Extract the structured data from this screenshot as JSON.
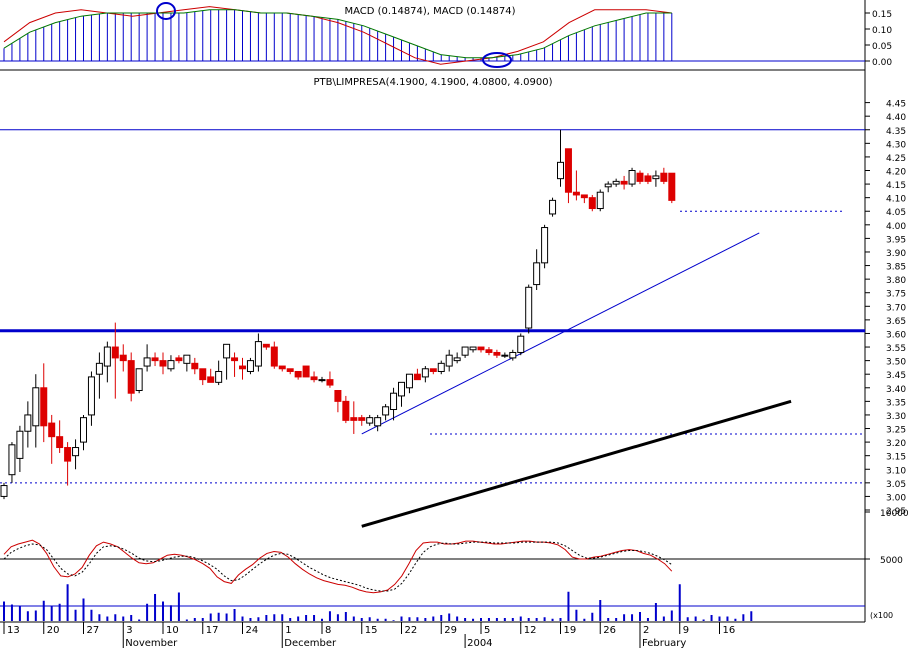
{
  "chart_data": [
    {
      "type": "line",
      "title": "MACD (0.14874), MACD (0.14874)",
      "ylim": [
        0,
        0.2
      ],
      "yticks": [
        0.0,
        0.05,
        0.1,
        0.15
      ],
      "ytick_labels": [
        "0.00",
        "0.05",
        "0.10",
        "0.15"
      ],
      "series": [
        {
          "values": [
            0.06,
            0.12,
            0.15,
            0.16,
            0.15,
            0.14,
            0.15,
            0.16,
            0.17,
            0.16,
            0.15,
            0.15,
            0.14,
            0.12,
            0.09,
            0.05,
            0.01,
            -0.01,
            0.0,
            0.01,
            0.03,
            0.06,
            0.12,
            0.16,
            0.16,
            0.16,
            0.15
          ]
        },
        {
          "values": [
            0.04,
            0.09,
            0.12,
            0.14,
            0.15,
            0.15,
            0.15,
            0.15,
            0.16,
            0.16,
            0.15,
            0.15,
            0.14,
            0.13,
            0.11,
            0.08,
            0.05,
            0.02,
            0.01,
            0.01,
            0.02,
            0.04,
            0.08,
            0.11,
            0.13,
            0.15,
            0.15
          ]
        }
      ],
      "annotations": [
        "circle",
        "ellipse"
      ]
    },
    {
      "type": "candlestick",
      "title": "PTB\\LIMPRESA(4.1900, 4.1900, 4.0800, 4.0900)",
      "ylim": [
        2.9,
        4.47
      ],
      "ytick_labels": [
        "2.95",
        "3.00",
        "3.05",
        "3.10",
        "3.15",
        "3.20",
        "3.25",
        "3.30",
        "3.35",
        "3.40",
        "3.45",
        "3.50",
        "3.55",
        "3.60",
        "3.65",
        "3.70",
        "3.75",
        "3.80",
        "3.85",
        "3.90",
        "3.95",
        "4.00",
        "4.05",
        "4.10",
        "4.15",
        "4.20",
        "4.25",
        "4.30",
        "4.35",
        "4.40",
        "4.45"
      ],
      "x_tick_labels": [
        "13",
        "20",
        "27",
        "3",
        "10",
        "17",
        "24",
        "1",
        "8",
        "15",
        "22",
        "29",
        "5",
        "12",
        "19",
        "26",
        "2",
        "9",
        "16"
      ],
      "x_tick_index": [
        0,
        5,
        10,
        15,
        20,
        25,
        30,
        35,
        40,
        45,
        50,
        55,
        60,
        65,
        70,
        75,
        80,
        85,
        90
      ],
      "month_labels": [
        {
          "label": "November",
          "index": 15
        },
        {
          "label": "December",
          "index": 35
        },
        {
          "label": "2004",
          "index": 58
        },
        {
          "label": "February",
          "index": 80
        }
      ],
      "candles": [
        {
          "o": 3.0,
          "h": 3.05,
          "l": 2.99,
          "c": 3.04
        },
        {
          "o": 3.08,
          "h": 3.2,
          "l": 3.05,
          "c": 3.19
        },
        {
          "o": 3.14,
          "h": 3.26,
          "l": 3.09,
          "c": 3.24
        },
        {
          "o": 3.24,
          "h": 3.35,
          "l": 3.18,
          "c": 3.3
        },
        {
          "o": 3.26,
          "h": 3.45,
          "l": 3.18,
          "c": 3.4
        },
        {
          "o": 3.4,
          "h": 3.49,
          "l": 3.2,
          "c": 3.26
        },
        {
          "o": 3.27,
          "h": 3.3,
          "l": 3.12,
          "c": 3.22
        },
        {
          "o": 3.22,
          "h": 3.28,
          "l": 3.16,
          "c": 3.18
        },
        {
          "o": 3.18,
          "h": 3.2,
          "l": 3.04,
          "c": 3.13
        },
        {
          "o": 3.15,
          "h": 3.21,
          "l": 3.1,
          "c": 3.18
        },
        {
          "o": 3.2,
          "h": 3.3,
          "l": 3.17,
          "c": 3.29
        },
        {
          "o": 3.3,
          "h": 3.46,
          "l": 3.26,
          "c": 3.44
        },
        {
          "o": 3.45,
          "h": 3.53,
          "l": 3.36,
          "c": 3.49
        },
        {
          "o": 3.48,
          "h": 3.57,
          "l": 3.42,
          "c": 3.55
        },
        {
          "o": 3.55,
          "h": 3.64,
          "l": 3.36,
          "c": 3.51
        },
        {
          "o": 3.52,
          "h": 3.56,
          "l": 3.46,
          "c": 3.5
        },
        {
          "o": 3.5,
          "h": 3.53,
          "l": 3.35,
          "c": 3.38
        },
        {
          "o": 3.39,
          "h": 3.47,
          "l": 3.38,
          "c": 3.47
        },
        {
          "o": 3.48,
          "h": 3.56,
          "l": 3.46,
          "c": 3.51
        },
        {
          "o": 3.51,
          "h": 3.53,
          "l": 3.48,
          "c": 3.5
        },
        {
          "o": 3.5,
          "h": 3.53,
          "l": 3.45,
          "c": 3.48
        },
        {
          "o": 3.47,
          "h": 3.52,
          "l": 3.46,
          "c": 3.5
        },
        {
          "o": 3.51,
          "h": 3.52,
          "l": 3.49,
          "c": 3.5
        },
        {
          "o": 3.49,
          "h": 3.52,
          "l": 3.46,
          "c": 3.52
        },
        {
          "o": 3.49,
          "h": 3.51,
          "l": 3.45,
          "c": 3.47
        },
        {
          "o": 3.47,
          "h": 3.47,
          "l": 3.41,
          "c": 3.43
        },
        {
          "o": 3.44,
          "h": 3.47,
          "l": 3.42,
          "c": 3.42
        },
        {
          "o": 3.42,
          "h": 3.5,
          "l": 3.41,
          "c": 3.46
        },
        {
          "o": 3.51,
          "h": 3.56,
          "l": 3.43,
          "c": 3.56
        },
        {
          "o": 3.51,
          "h": 3.53,
          "l": 3.44,
          "c": 3.5
        },
        {
          "o": 3.48,
          "h": 3.51,
          "l": 3.43,
          "c": 3.47
        },
        {
          "o": 3.46,
          "h": 3.51,
          "l": 3.45,
          "c": 3.5
        },
        {
          "o": 3.48,
          "h": 3.6,
          "l": 3.46,
          "c": 3.57
        },
        {
          "o": 3.56,
          "h": 3.56,
          "l": 3.54,
          "c": 3.55
        },
        {
          "o": 3.55,
          "h": 3.57,
          "l": 3.47,
          "c": 3.48
        },
        {
          "o": 3.48,
          "h": 3.48,
          "l": 3.46,
          "c": 3.47
        },
        {
          "o": 3.47,
          "h": 3.47,
          "l": 3.45,
          "c": 3.46
        },
        {
          "o": 3.46,
          "h": 3.46,
          "l": 3.43,
          "c": 3.44
        },
        {
          "o": 3.48,
          "h": 3.48,
          "l": 3.44,
          "c": 3.44
        },
        {
          "o": 3.44,
          "h": 3.46,
          "l": 3.42,
          "c": 3.43
        },
        {
          "o": 3.43,
          "h": 3.44,
          "l": 3.42,
          "c": 3.43
        },
        {
          "o": 3.43,
          "h": 3.46,
          "l": 3.4,
          "c": 3.41
        },
        {
          "o": 3.39,
          "h": 3.39,
          "l": 3.31,
          "c": 3.35
        },
        {
          "o": 3.35,
          "h": 3.37,
          "l": 3.27,
          "c": 3.28
        },
        {
          "o": 3.29,
          "h": 3.35,
          "l": 3.23,
          "c": 3.28
        },
        {
          "o": 3.29,
          "h": 3.3,
          "l": 3.26,
          "c": 3.28
        },
        {
          "o": 3.27,
          "h": 3.3,
          "l": 3.26,
          "c": 3.29
        },
        {
          "o": 3.26,
          "h": 3.3,
          "l": 3.24,
          "c": 3.29
        },
        {
          "o": 3.3,
          "h": 3.34,
          "l": 3.28,
          "c": 3.33
        },
        {
          "o": 3.32,
          "h": 3.4,
          "l": 3.28,
          "c": 3.38
        },
        {
          "o": 3.37,
          "h": 3.42,
          "l": 3.33,
          "c": 3.42
        },
        {
          "o": 3.4,
          "h": 3.45,
          "l": 3.38,
          "c": 3.45
        },
        {
          "o": 3.45,
          "h": 3.47,
          "l": 3.43,
          "c": 3.43
        },
        {
          "o": 3.44,
          "h": 3.48,
          "l": 3.42,
          "c": 3.47
        },
        {
          "o": 3.47,
          "h": 3.47,
          "l": 3.45,
          "c": 3.46
        },
        {
          "o": 3.46,
          "h": 3.5,
          "l": 3.45,
          "c": 3.49
        },
        {
          "o": 3.48,
          "h": 3.54,
          "l": 3.46,
          "c": 3.52
        },
        {
          "o": 3.5,
          "h": 3.53,
          "l": 3.49,
          "c": 3.51
        },
        {
          "o": 3.52,
          "h": 3.55,
          "l": 3.51,
          "c": 3.55
        },
        {
          "o": 3.54,
          "h": 3.55,
          "l": 3.53,
          "c": 3.55
        },
        {
          "o": 3.55,
          "h": 3.55,
          "l": 3.53,
          "c": 3.54
        },
        {
          "o": 3.54,
          "h": 3.55,
          "l": 3.52,
          "c": 3.53
        },
        {
          "o": 3.53,
          "h": 3.54,
          "l": 3.51,
          "c": 3.52
        },
        {
          "o": 3.52,
          "h": 3.53,
          "l": 3.51,
          "c": 3.52
        },
        {
          "o": 3.51,
          "h": 3.54,
          "l": 3.5,
          "c": 3.53
        },
        {
          "o": 3.53,
          "h": 3.6,
          "l": 3.52,
          "c": 3.59
        },
        {
          "o": 3.62,
          "h": 3.78,
          "l": 3.6,
          "c": 3.77
        },
        {
          "o": 3.78,
          "h": 3.91,
          "l": 3.76,
          "c": 3.86
        },
        {
          "o": 3.86,
          "h": 4.0,
          "l": 3.84,
          "c": 3.99
        },
        {
          "o": 4.04,
          "h": 4.1,
          "l": 4.03,
          "c": 4.09
        },
        {
          "o": 4.17,
          "h": 4.35,
          "l": 4.14,
          "c": 4.23
        },
        {
          "o": 4.28,
          "h": 4.28,
          "l": 4.08,
          "c": 4.12
        },
        {
          "o": 4.12,
          "h": 4.2,
          "l": 4.09,
          "c": 4.11
        },
        {
          "o": 4.11,
          "h": 4.11,
          "l": 4.08,
          "c": 4.1
        },
        {
          "o": 4.1,
          "h": 4.11,
          "l": 4.05,
          "c": 4.06
        },
        {
          "o": 4.06,
          "h": 4.13,
          "l": 4.05,
          "c": 4.12
        },
        {
          "o": 4.14,
          "h": 4.16,
          "l": 4.12,
          "c": 4.15
        },
        {
          "o": 4.15,
          "h": 4.17,
          "l": 4.14,
          "c": 4.16
        },
        {
          "o": 4.16,
          "h": 4.18,
          "l": 4.13,
          "c": 4.15
        },
        {
          "o": 4.15,
          "h": 4.21,
          "l": 4.14,
          "c": 4.2
        },
        {
          "o": 4.19,
          "h": 4.2,
          "l": 4.15,
          "c": 4.16
        },
        {
          "o": 4.18,
          "h": 4.19,
          "l": 4.15,
          "c": 4.16
        },
        {
          "o": 4.17,
          "h": 4.2,
          "l": 4.14,
          "c": 4.18
        },
        {
          "o": 4.19,
          "h": 4.21,
          "l": 4.15,
          "c": 4.16
        },
        {
          "o": 4.19,
          "h": 4.19,
          "l": 4.08,
          "c": 4.09
        }
      ],
      "reference_lines": [
        {
          "type": "horizontal",
          "value": 4.35,
          "color": "#0000cc"
        },
        {
          "type": "horizontal",
          "value": 3.61,
          "color": "#0000cc",
          "thick": true
        },
        {
          "type": "horizontal-dotted",
          "value": 3.05,
          "color": "#0000cc"
        },
        {
          "type": "horizontal-dotted",
          "value": 3.23,
          "color": "#0000cc"
        },
        {
          "type": "horizontal-dotted",
          "value": 4.05,
          "color": "#0000cc"
        }
      ],
      "trend_lines": [
        {
          "from": {
            "index": 45,
            "value": 3.23
          },
          "to": {
            "index": 95,
            "value": 3.97
          },
          "color": "#0000cc"
        },
        {
          "from": {
            "index": 45,
            "value": 2.89
          },
          "to": {
            "index": 99,
            "value": 3.35
          },
          "color": "#000000",
          "thick": true
        }
      ]
    },
    {
      "type": "line",
      "title": "",
      "ytick_labels": [
        "10000",
        "5000"
      ],
      "axis_unit_label": "(x100",
      "series": [
        {
          "name": "",
          "color": "#cc0000",
          "values": [
            5500,
            6300,
            6600,
            6800,
            7000,
            6600,
            5600,
            4200,
            3200,
            3100,
            3400,
            4100,
            5400,
            6400,
            6800,
            6600,
            6300,
            5700,
            5100,
            4600,
            4500,
            4600,
            5000,
            5400,
            5500,
            5400,
            5200,
            4900,
            4500,
            4000,
            3100,
            2600,
            2400,
            3300,
            3900,
            4400,
            5100,
            5600,
            5800,
            5700,
            5200,
            4500,
            3900,
            3400,
            3000,
            2700,
            2500,
            2300,
            2200,
            2000,
            1700,
            1500,
            1400,
            1500,
            1700,
            2300,
            3200,
            4500,
            5900,
            6700,
            6800,
            6800,
            6600,
            6600,
            6700,
            6900,
            6900,
            6800,
            6700,
            6600,
            6600,
            6700,
            6800,
            6900,
            6900,
            6800,
            6800,
            6700,
            6500,
            6000,
            5200,
            5000,
            5000,
            5200,
            5300,
            5500,
            5700,
            5900,
            6000,
            5900,
            5600,
            5400,
            5000,
            4500,
            3700
          ]
        },
        {
          "name": "",
          "color": "#000000",
          "values": [
            5000,
            5700,
            6100,
            6400,
            6600,
            6500,
            6000,
            5000,
            4000,
            3400,
            3200,
            3600,
            4500,
            5600,
            6300,
            6400,
            6300,
            6000,
            5600,
            5100,
            4800,
            4700,
            4800,
            5000,
            5200,
            5300,
            5300,
            5100,
            4800,
            4400,
            3900,
            3200,
            2700,
            2800,
            3300,
            3900,
            4500,
            5000,
            5400,
            5600,
            5500,
            5100,
            4600,
            4100,
            3700,
            3300,
            3000,
            2800,
            2600,
            2400,
            2200,
            1900,
            1700,
            1600,
            1600,
            1800,
            2400,
            3400,
            4600,
            5700,
            6300,
            6600,
            6700,
            6600,
            6600,
            6700,
            6800,
            6800,
            6800,
            6700,
            6700,
            6700,
            6700,
            6800,
            6800,
            6800,
            6800,
            6800,
            6700,
            6400,
            5900,
            5400,
            5100,
            5100,
            5200,
            5400,
            5600,
            5800,
            5900,
            5900,
            5800,
            5600,
            5300,
            4900,
            4400
          ]
        }
      ],
      "volume_bars": [
        2600,
        2200,
        2000,
        1300,
        1400,
        2700,
        2000,
        2300,
        4900,
        1500,
        3000,
        1500,
        900,
        600,
        900,
        600,
        800,
        200,
        2300,
        3600,
        2600,
        2100,
        3800,
        200,
        400,
        400,
        1000,
        1100,
        1000,
        1600,
        600,
        400,
        500,
        800,
        900,
        900,
        400,
        600,
        800,
        800,
        300,
        1300,
        900,
        1200,
        600,
        400,
        500,
        300,
        300,
        100,
        600,
        500,
        500,
        400,
        600,
        800,
        1000,
        600,
        400,
        300,
        400,
        400,
        400,
        400,
        400,
        600,
        400,
        400,
        500,
        300,
        400,
        3900,
        1500,
        300,
        1100,
        2800,
        400,
        400,
        900,
        900,
        1200,
        400,
        2400,
        600,
        1400,
        4900,
        500,
        600,
        200,
        800,
        600,
        600,
        300,
        900,
        1300
      ]
    }
  ]
}
